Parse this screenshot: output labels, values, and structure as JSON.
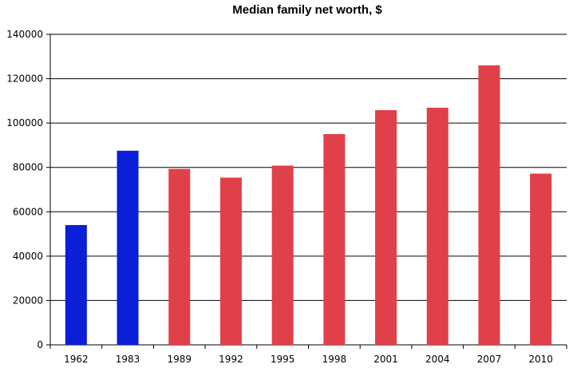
{
  "chart_data": {
    "type": "bar",
    "title": "Median family net worth, $",
    "xlabel": "",
    "ylabel": "",
    "categories": [
      "1962",
      "1983",
      "1989",
      "1992",
      "1995",
      "1998",
      "2001",
      "2004",
      "2007",
      "2010"
    ],
    "values": [
      54000,
      87500,
      79300,
      75400,
      80800,
      95000,
      105800,
      106900,
      126000,
      77200
    ],
    "bar_colors": [
      "#0a1fd6",
      "#0a1fd6",
      "#e0404a",
      "#e0404a",
      "#e0404a",
      "#e0404a",
      "#e0404a",
      "#e0404a",
      "#e0404a",
      "#e0404a"
    ],
    "ylim": [
      0,
      140000
    ],
    "yticks": [
      0,
      20000,
      40000,
      60000,
      80000,
      100000,
      120000,
      140000
    ],
    "grid": true,
    "legend": "none"
  }
}
